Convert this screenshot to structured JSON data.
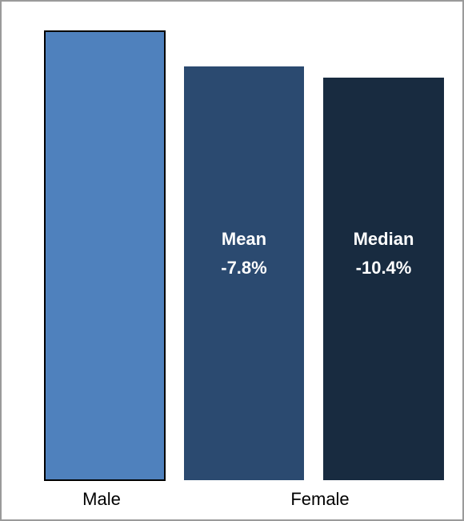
{
  "chart_data": {
    "type": "bar",
    "title": "",
    "xlabel": "",
    "ylabel": "",
    "axis_groups": [
      "Male",
      "Female"
    ],
    "bars": [
      {
        "group": "Male",
        "name": "",
        "relative_value": 1.0,
        "annotation": [],
        "color": "#4f81bd"
      },
      {
        "group": "Female",
        "name": "Mean",
        "relative_value": 0.922,
        "annotation": [
          "Mean",
          "-7.8%"
        ],
        "color": "#2b4a70"
      },
      {
        "group": "Female",
        "name": "Median",
        "relative_value": 0.896,
        "annotation": [
          "Median",
          "-10.4%"
        ],
        "color": "#182b40"
      }
    ]
  }
}
